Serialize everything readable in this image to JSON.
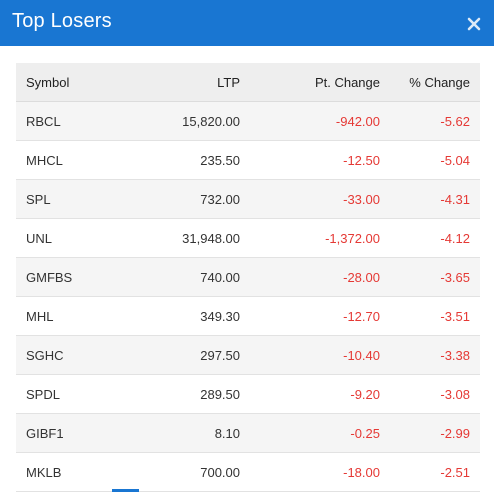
{
  "header": {
    "title": "Top Losers",
    "close_icon": "close-icon"
  },
  "colors": {
    "header_bg": "#1976d2",
    "negative": "#e53935"
  },
  "table": {
    "columns": [
      "Symbol",
      "LTP",
      "Pt. Change",
      "% Change"
    ],
    "rows": [
      {
        "symbol": "RBCL",
        "ltp": "15,820.00",
        "pt_change": "-942.00",
        "pct_change": "-5.62"
      },
      {
        "symbol": "MHCL",
        "ltp": "235.50",
        "pt_change": "-12.50",
        "pct_change": "-5.04"
      },
      {
        "symbol": "SPL",
        "ltp": "732.00",
        "pt_change": "-33.00",
        "pct_change": "-4.31"
      },
      {
        "symbol": "UNL",
        "ltp": "31,948.00",
        "pt_change": "-1,372.00",
        "pct_change": "-4.12"
      },
      {
        "symbol": "GMFBS",
        "ltp": "740.00",
        "pt_change": "-28.00",
        "pct_change": "-3.65"
      },
      {
        "symbol": "MHL",
        "ltp": "349.30",
        "pt_change": "-12.70",
        "pct_change": "-3.51"
      },
      {
        "symbol": "SGHC",
        "ltp": "297.50",
        "pt_change": "-10.40",
        "pct_change": "-3.38"
      },
      {
        "symbol": "SPDL",
        "ltp": "289.50",
        "pt_change": "-9.20",
        "pct_change": "-3.08"
      },
      {
        "symbol": "GIBF1",
        "ltp": "8.10",
        "pt_change": "-0.25",
        "pct_change": "-2.99"
      },
      {
        "symbol": "MKLB",
        "ltp": "700.00",
        "pt_change": "-18.00",
        "pct_change": "-2.51"
      }
    ]
  }
}
